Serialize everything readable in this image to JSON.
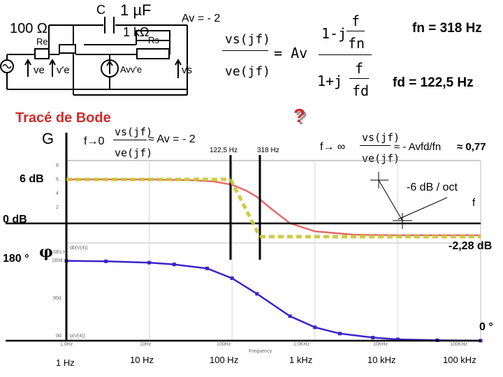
{
  "circuit": {
    "cap_c": "C",
    "cap_val": "1 µF",
    "r_in": "100 Ω",
    "r_mid": "1 kΩ",
    "re": "Re",
    "rs": "Rs",
    "ve": "ve",
    "ve_prime": "v'e",
    "av_ve": "Avv'e",
    "vs": "vs"
  },
  "formula": {
    "av_label": "Av = - 2",
    "lhs_num": "vs(jf)",
    "lhs_den": "ve(jf)",
    "eq_av": "= Av",
    "num_left": "1-j",
    "num_f": "f",
    "num_fn": "fn",
    "den_left": "1+j",
    "den_f": "f",
    "den_fd": "fd"
  },
  "freqs": {
    "fn": "fn = 318 Hz",
    "fd": "fd = 122,5 Hz"
  },
  "bode": {
    "title": "Tracé de Bode",
    "g": "G",
    "f_to_0": "f→0",
    "low_num": "vs(jf)",
    "low_den": "ve(jf)",
    "low_approx": "≈ Av = - 2",
    "mark_fd": "122,5 Hz",
    "mark_fn": "318 Hz",
    "question": "?",
    "f_to_inf": "f→ ∞",
    "high_num": "vs(jf)",
    "high_den": "ve(jf)",
    "high_approx": "≈ - Avfd/fn",
    "high_value": "≈ 0,77",
    "level_6db": "6 dB",
    "slope": "-6 dB / oct",
    "f_label": "f",
    "level_0db": "0 dB",
    "level_180": "180 °",
    "phi": "φ",
    "level_m228": "-2,28 dB",
    "level_0deg": "0 °",
    "x_labels": [
      "1 Hz",
      "10 Hz",
      "100 Hz",
      "1 kHz",
      "10 kHz",
      "100 kHz"
    ],
    "spice": {
      "mag_ticks": [
        "8",
        "6",
        "4",
        "2"
      ],
      "phase_ticks": [
        "180d",
        "90d",
        "0d"
      ],
      "x_ticks": [
        "1.0Hz",
        "10Hz",
        "100Hz",
        "1.0KHz",
        "10KHz",
        "100KHz"
      ],
      "mag_legend": "db(V(4))",
      "phase_legend": "p(V(4))",
      "x_axis_label": "Frequency",
      "sel_label": "SEL>>"
    }
  },
  "chart_data": [
    {
      "type": "line",
      "title": "",
      "xlabel": "Frequency",
      "ylabel": "",
      "x_scale": "log",
      "xlim": [
        1,
        100000
      ],
      "ylim": [
        -2,
        8
      ],
      "series": [
        {
          "name": "db(V(4))",
          "x": [
            1,
            10,
            30,
            60,
            100,
            150,
            200,
            300,
            500,
            1000,
            3000,
            10000,
            100000
          ],
          "y": [
            6.0,
            6.0,
            5.9,
            5.7,
            5.2,
            4.3,
            3.4,
            1.6,
            -0.5,
            -1.7,
            -2.2,
            -2.28,
            -2.28
          ]
        }
      ]
    },
    {
      "type": "line",
      "title": "",
      "xlabel": "Frequency",
      "ylabel": "",
      "x_scale": "log",
      "xlim": [
        1,
        100000
      ],
      "ylim": [
        0,
        180
      ],
      "series": [
        {
          "name": "p(V(4))",
          "x": [
            1,
            3,
            10,
            20,
            50,
            100,
            200,
            500,
            1000,
            2000,
            5000,
            10000,
            30000,
            100000
          ],
          "y": [
            179,
            178,
            175,
            171,
            162,
            140,
            105,
            55,
            30,
            16,
            7,
            3,
            1,
            0
          ]
        }
      ]
    }
  ]
}
